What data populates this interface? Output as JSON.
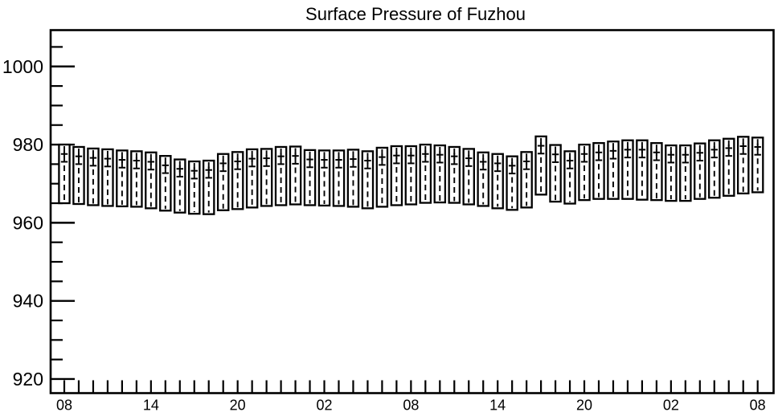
{
  "chart_data": {
    "type": "boxplot",
    "title": "Surface Pressure of Fuzhou",
    "xlabel": "",
    "ylabel": "",
    "ylim": [
      916.4,
      1009.3
    ],
    "yticks_major": [
      920,
      940,
      960,
      980,
      1000
    ],
    "ytick_minor_step": 5,
    "ytick_minor_range": [
      925,
      1005
    ],
    "x_count": 49,
    "x_label_every": 6,
    "x_tick_labels": [
      "08",
      "14",
      "20",
      "02",
      "08",
      "14",
      "20",
      "02",
      "08"
    ],
    "grid": false,
    "legend": null,
    "colors": {
      "stroke": "#000000",
      "box_fill": "#ffffff",
      "background": "#ffffff"
    },
    "series": {
      "box_top": [
        980.0,
        979.4,
        979.0,
        978.8,
        978.5,
        978.3,
        978.0,
        977.1,
        976.2,
        975.7,
        975.9,
        977.6,
        978.1,
        978.8,
        978.9,
        979.4,
        979.5,
        978.6,
        978.5,
        978.5,
        978.7,
        978.3,
        979.2,
        979.6,
        979.6,
        980.0,
        979.8,
        979.4,
        978.9,
        978.0,
        977.6,
        977.0,
        978.1,
        982.1,
        979.9,
        978.3,
        980.0,
        980.4,
        980.8,
        981.1,
        981.1,
        980.4,
        979.8,
        979.8,
        980.3,
        981.1,
        981.5,
        982.0,
        981.8
      ],
      "box_bottom": [
        965.0,
        964.8,
        964.5,
        964.3,
        964.2,
        964.1,
        963.7,
        963.1,
        962.6,
        962.3,
        962.2,
        963.2,
        963.5,
        963.9,
        964.3,
        964.5,
        964.7,
        964.5,
        964.4,
        964.3,
        964.1,
        963.7,
        964.1,
        964.5,
        964.7,
        965.1,
        965.2,
        965.1,
        964.7,
        964.3,
        963.7,
        963.3,
        963.9,
        967.2,
        965.4,
        964.9,
        965.8,
        966.1,
        966.1,
        966.1,
        965.9,
        965.8,
        965.6,
        965.6,
        966.1,
        966.4,
        966.9,
        967.5,
        967.8
      ],
      "mean_plus": [
        977.6,
        977.0,
        976.6,
        976.4,
        976.1,
        975.9,
        975.6,
        974.7,
        973.8,
        973.3,
        973.5,
        975.2,
        975.7,
        976.4,
        976.5,
        977.0,
        977.1,
        976.2,
        976.1,
        976.1,
        976.3,
        975.9,
        976.8,
        977.2,
        977.2,
        977.6,
        977.4,
        977.0,
        976.5,
        975.6,
        975.2,
        974.6,
        975.7,
        979.7,
        977.5,
        975.9,
        977.6,
        978.0,
        978.4,
        978.7,
        978.7,
        978.0,
        977.4,
        977.4,
        977.9,
        978.7,
        979.1,
        979.6,
        979.4
      ],
      "median_dash": [
        975.6,
        975.0,
        974.6,
        974.4,
        974.1,
        973.9,
        973.6,
        972.7,
        971.8,
        971.3,
        971.5,
        973.2,
        973.7,
        974.4,
        974.5,
        975.0,
        975.1,
        974.2,
        974.1,
        974.1,
        974.3,
        973.9,
        974.8,
        975.2,
        975.2,
        975.6,
        975.4,
        975.0,
        974.5,
        973.6,
        973.2,
        972.6,
        973.7,
        977.7,
        975.5,
        973.9,
        975.6,
        976.0,
        976.4,
        976.7,
        976.7,
        976.0,
        975.4,
        975.4,
        975.9,
        976.7,
        977.1,
        977.6,
        977.4
      ]
    }
  }
}
